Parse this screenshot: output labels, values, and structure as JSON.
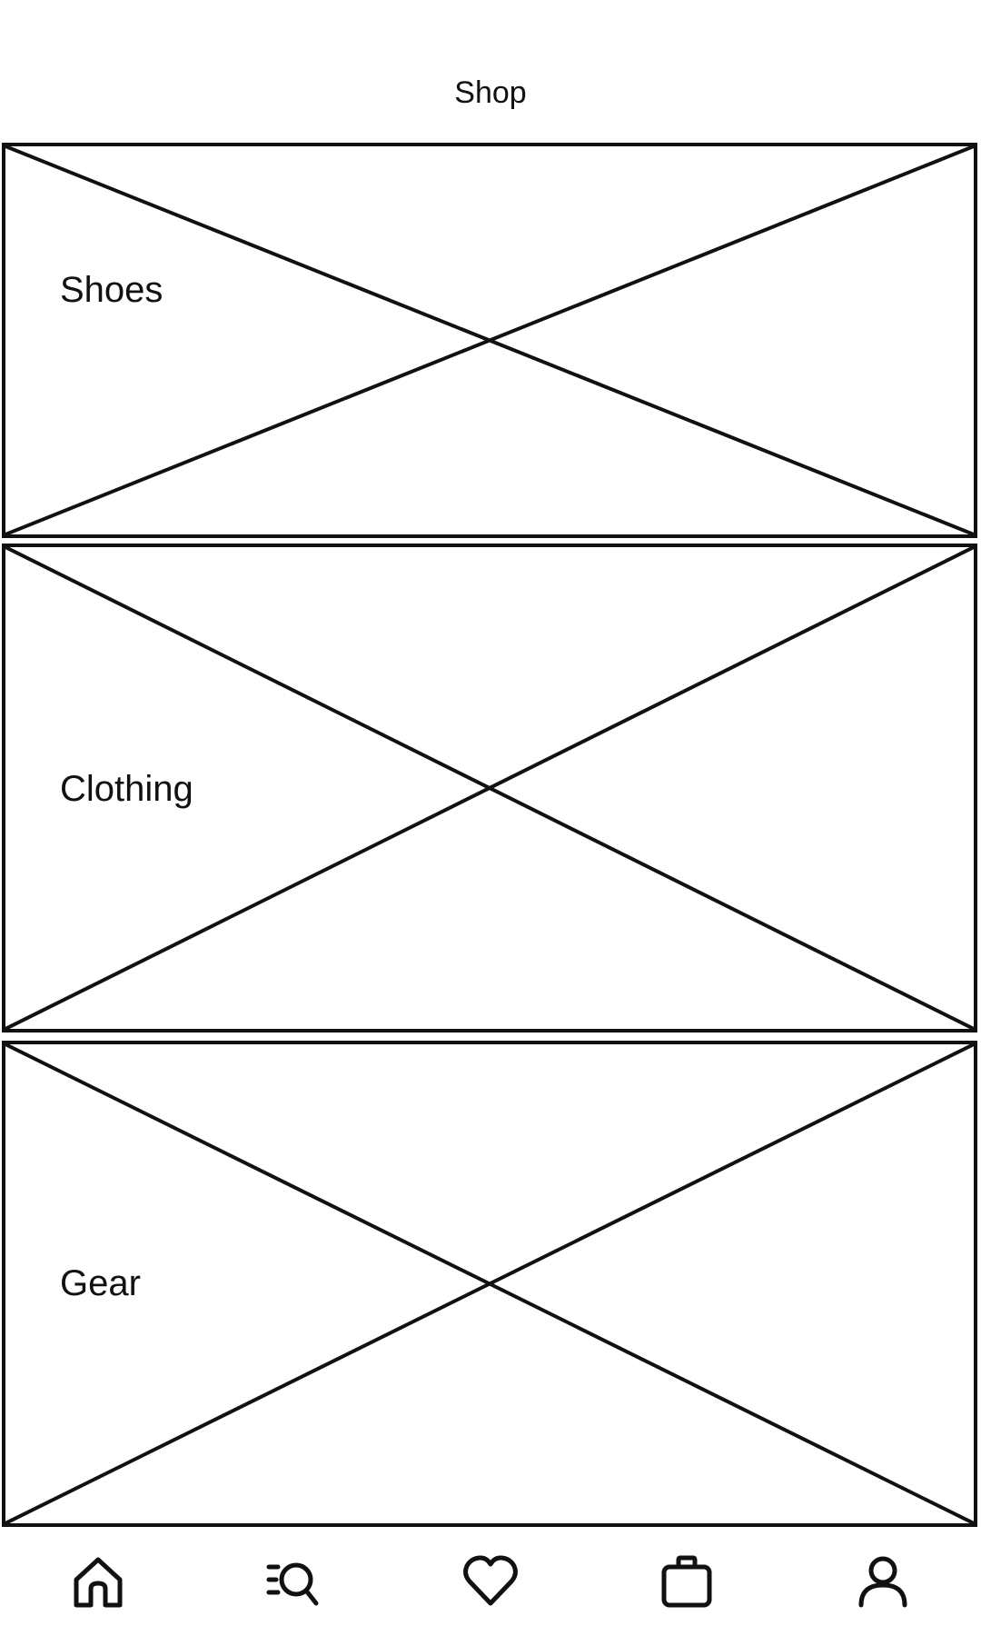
{
  "header": {
    "title": "Shop"
  },
  "categories": [
    {
      "label": "Shoes"
    },
    {
      "label": "Clothing"
    },
    {
      "label": "Gear"
    }
  ],
  "bottom_nav": {
    "items": [
      {
        "icon": "home-icon"
      },
      {
        "icon": "search-list-icon"
      },
      {
        "icon": "heart-icon"
      },
      {
        "icon": "bag-icon"
      },
      {
        "icon": "profile-icon"
      }
    ]
  },
  "colors": {
    "stroke": "#111111",
    "background": "#ffffff"
  }
}
